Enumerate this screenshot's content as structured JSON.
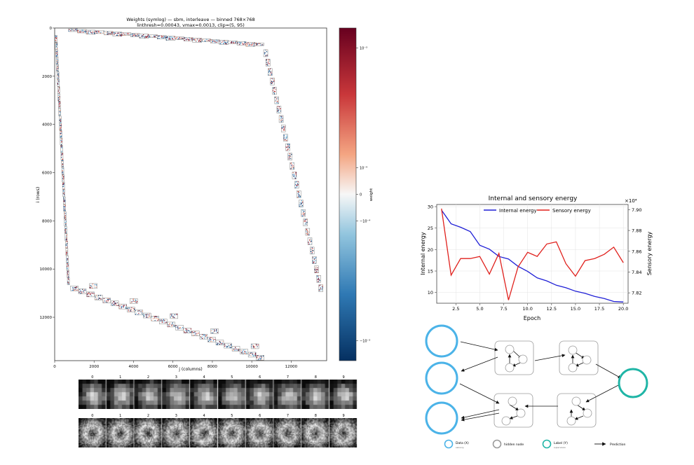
{
  "heatmap": {
    "title": "Weights (symlog) — sbm, interleave — binned 768×768",
    "subtitle": "linthresh=0.00043, vmax=0.0013, clip=(5, 95)",
    "xlabel": "j (columns)",
    "ylabel": "i (rows)",
    "xticks": [
      "0",
      "2000",
      "4000",
      "6000",
      "8000",
      "10000",
      "12000"
    ],
    "yticks": [
      "0",
      "2000",
      "4000",
      "6000",
      "8000",
      "10000",
      "12000"
    ],
    "colorbar": {
      "label": "weight",
      "ticks": [
        "10⁻³",
        "10⁻⁴",
        "0",
        "−10⁻⁴",
        "−10⁻³"
      ],
      "high_color": "#67001f",
      "low_color": "#053061"
    }
  },
  "thumbnails": {
    "top_labels": [
      "0",
      "1",
      "2",
      "3",
      "4",
      "5",
      "6",
      "7",
      "8",
      "9"
    ],
    "bottom_labels": [
      "0",
      "1",
      "2",
      "3",
      "4",
      "5",
      "6",
      "7",
      "8",
      "9"
    ]
  },
  "chart_data": {
    "type": "line",
    "title": "Internal and sensory energy",
    "xlabel": "Epoch",
    "ylabel_left": "Internal energy",
    "ylabel_right": "Sensory energy",
    "right_multiplier": "×10⁴",
    "xlim": [
      0.5,
      20.5
    ],
    "ylim_left": [
      7.5,
      30.5
    ],
    "ylim_right": [
      7.81,
      7.905
    ],
    "xticks": [
      "2.5",
      "5.0",
      "7.5",
      "10.0",
      "12.5",
      "15.0",
      "17.5",
      "20.0"
    ],
    "yticks_left": [
      "10",
      "15",
      "20",
      "25",
      "30"
    ],
    "yticks_right": [
      "7.82",
      "7.84",
      "7.86",
      "7.88",
      "7.90"
    ],
    "legend": "top-center",
    "grid": true,
    "series": [
      {
        "name": "Internal energy",
        "color": "#1f1fd6",
        "axis": "left",
        "x": [
          1,
          2,
          3,
          4,
          5,
          6,
          7,
          8,
          9,
          10,
          11,
          12,
          13,
          14,
          15,
          16,
          17,
          18,
          19,
          20
        ],
        "y": [
          29.2,
          26,
          25.2,
          24.2,
          21,
          20.1,
          18.4,
          17.8,
          16.1,
          14.9,
          13.4,
          12.7,
          11.7,
          11.1,
          10.3,
          9.8,
          9.1,
          8.6,
          7.9,
          7.8
        ]
      },
      {
        "name": "Sensory energy",
        "color": "#e0201c",
        "axis": "right",
        "x": [
          1,
          2,
          3,
          4,
          5,
          6,
          7,
          8,
          9,
          10,
          11,
          12,
          13,
          14,
          15,
          16,
          17,
          18,
          19,
          20
        ],
        "y": [
          7.901,
          7.837,
          7.853,
          7.853,
          7.855,
          7.838,
          7.858,
          7.813,
          7.845,
          7.859,
          7.855,
          7.867,
          7.869,
          7.848,
          7.836,
          7.851,
          7.853,
          7.857,
          7.864,
          7.849
        ]
      }
    ]
  },
  "diagram": {
    "legend": {
      "data_label": "Data (X)",
      "data_sub": "sensory",
      "hidden_label": "hidden node",
      "label_label": "Label (Y)",
      "label_sub": "supervision",
      "prediction_label": "Prediction"
    },
    "colors": {
      "data": "#4bb3e8",
      "label": "#1fb5a6",
      "hidden": "#9a9a9a"
    }
  }
}
